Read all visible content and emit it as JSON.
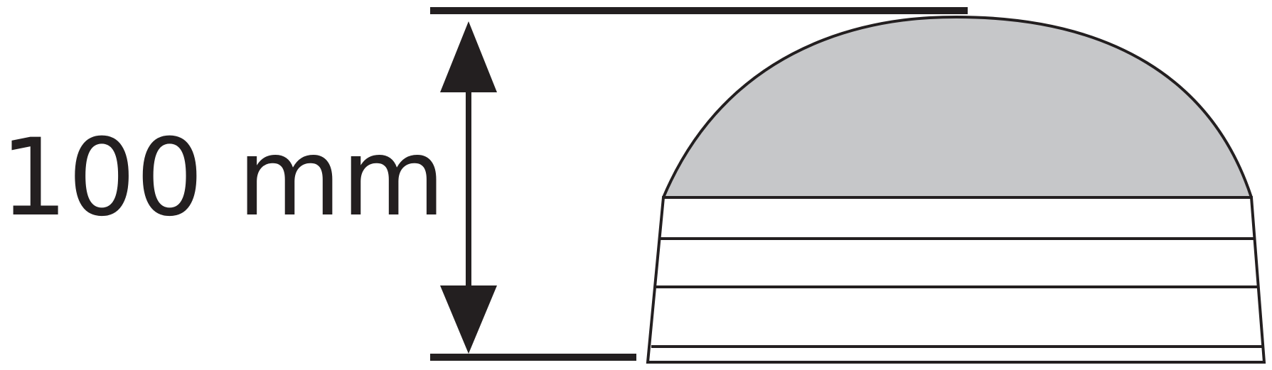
{
  "dimension": {
    "label": "100 mm"
  },
  "colors": {
    "ink": "#231f20",
    "dome_fill": "#c6c7c9",
    "background": "#ffffff"
  }
}
